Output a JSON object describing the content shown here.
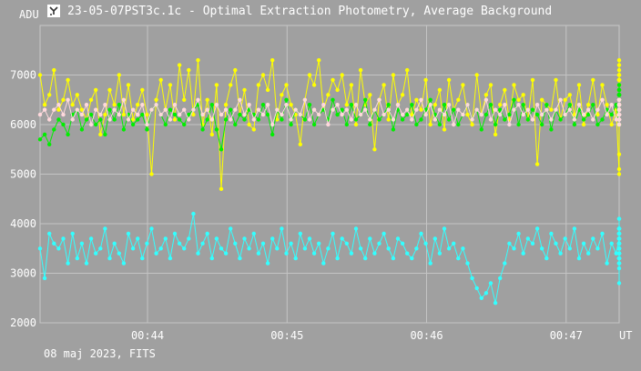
{
  "window": {
    "title": "23-05-07PST3c.1c - Optimal Extraction Photometry, Average Background",
    "icon": "app-icon"
  },
  "footer": {
    "date_text": "08 maj 2023, FITS"
  },
  "colors": {
    "background": "#a0a0a0",
    "grid": "#c4c4c4",
    "text": "#ffffff",
    "yellow": "#ffff00",
    "green": "#00ee00",
    "pink": "#ffd8dc",
    "cyan": "#33ffff"
  },
  "chart_data": {
    "type": "line",
    "xlabel": "UT",
    "ylabel": "ADU",
    "x_ticks": [
      "00:44",
      "00:45",
      "00:46",
      "00:47"
    ],
    "y_ticks": [
      2000,
      3000,
      4000,
      5000,
      6000,
      7000
    ],
    "xlim_minutes": [
      43.23,
      47.38
    ],
    "ylim": [
      2000,
      8000
    ],
    "grid": true,
    "x_start_minute": 43.23,
    "x_step_minutes": 0.0333,
    "series": [
      {
        "color": "yellow",
        "values": [
          7000,
          6400,
          6600,
          7100,
          6300,
          6500,
          6900,
          6400,
          6600,
          6300,
          6100,
          6500,
          6700,
          5800,
          6200,
          6700,
          6400,
          7000,
          6200,
          6800,
          6100,
          6400,
          6700,
          6200,
          5000,
          6500,
          6900,
          6300,
          6800,
          6100,
          7200,
          6500,
          7100,
          6200,
          7300,
          6000,
          6500,
          5800,
          6800,
          4700,
          6400,
          6800,
          7100,
          6200,
          6700,
          6000,
          5900,
          6800,
          7000,
          6700,
          7300,
          6100,
          6600,
          6800,
          6400,
          6200,
          5600,
          6500,
          7000,
          6800,
          7300,
          6300,
          6600,
          6900,
          6700,
          7000,
          6400,
          6800,
          6000,
          7100,
          6400,
          6600,
          5500,
          6500,
          6800,
          6100,
          7000,
          6400,
          6600,
          7100,
          6200,
          6500,
          6300,
          6900,
          6000,
          6400,
          6700,
          5900,
          6900,
          6300,
          6500,
          6800,
          6200,
          6000,
          7000,
          6200,
          6600,
          6800,
          5800,
          6400,
          6700,
          6100,
          6800,
          6500,
          6600,
          6100,
          6900,
          5200,
          6500,
          6400,
          6300,
          6900,
          6100,
          6500,
          6600,
          6200,
          6800,
          6000,
          6400,
          6900,
          6200,
          6800,
          6400,
          6000,
          6300,
          5000,
          6500,
          6700,
          6200,
          6900,
          6000,
          6600,
          6800,
          6400,
          6900,
          6200,
          6400,
          6800,
          6100,
          6900,
          6300,
          6400,
          6700,
          6000,
          6500,
          7000,
          6300,
          6800,
          6100,
          6500,
          6400,
          6000,
          6500,
          6600,
          6900,
          6300,
          6400,
          5100,
          6500,
          6800,
          6300,
          5400,
          6600,
          6200,
          6800,
          6500,
          6300,
          6900,
          6400,
          7000,
          6300,
          6600,
          6500,
          7200,
          6500,
          6700,
          6400,
          6800,
          6600,
          7000,
          6500,
          6200,
          6800,
          6500,
          7100,
          6400,
          6600,
          7300,
          6500,
          6900,
          6400,
          6700,
          6200,
          6500,
          6900,
          6100,
          6600,
          6400,
          6800,
          6300,
          6500,
          6200,
          6700,
          6300,
          6600,
          6900,
          6000,
          6500,
          6700,
          6200,
          6400,
          6600,
          6100,
          6800,
          6400,
          6700,
          6300,
          6500,
          6000,
          6900,
          6400,
          7000,
          6500,
          6800,
          6300,
          6700,
          6200,
          6500,
          6800,
          6100,
          6600,
          6200
        ]
      },
      {
        "color": "green",
        "values": [
          5700,
          5800,
          5600,
          5900,
          6100,
          6000,
          5800,
          6200,
          6300,
          5900,
          6100,
          6200,
          6000,
          6100,
          5800,
          6300,
          6100,
          6400,
          5900,
          6200,
          6000,
          6100,
          6200,
          5900,
          6300,
          6400,
          6200,
          6000,
          6300,
          6200,
          6100,
          6000,
          6200,
          6300,
          6400,
          5900,
          6100,
          6400,
          5900,
          5500,
          6100,
          6300,
          6000,
          6200,
          6100,
          6300,
          6200,
          6100,
          6400,
          6200,
          5800,
          6300,
          6100,
          6500,
          6000,
          6300,
          6200,
          6100,
          6400,
          6000,
          6200,
          6300,
          6100,
          6500,
          6200,
          6300,
          6000,
          6400,
          6100,
          6200,
          6500,
          6000,
          6300,
          6100,
          6200,
          6400,
          5900,
          6300,
          6100,
          6200,
          6400,
          6000,
          6100,
          6300,
          6500,
          6200,
          6000,
          6400,
          6100,
          6300,
          6000,
          6200,
          6400,
          6100,
          6300,
          5900,
          6200,
          6400,
          6000,
          6300,
          6100,
          6200,
          6500,
          6000,
          6400,
          6100,
          6300,
          6200,
          6000,
          6400,
          5900,
          6300,
          6100,
          6200,
          6400,
          6000,
          6300,
          6100,
          6200,
          6400,
          6000,
          6100,
          6300,
          6200,
          6400,
          6000,
          6100,
          6300,
          6200,
          6500,
          6000,
          6100,
          6300,
          6200,
          6400,
          6100,
          6000,
          6300,
          6200,
          6400,
          6000,
          6100,
          6300,
          6200,
          6500,
          6300,
          6000,
          6400,
          6200,
          6300,
          6100,
          6000,
          6400,
          6300,
          6200,
          6500,
          6100,
          6300,
          6200,
          6400,
          6000,
          6300,
          6500,
          6200,
          6300,
          6100,
          6400,
          6600,
          6200,
          6300,
          6000,
          6500,
          6300,
          6400,
          6200,
          6600,
          6300,
          6100,
          6400,
          6500,
          6300,
          6200,
          6700,
          6400,
          6300,
          6500,
          6800,
          6600,
          6400,
          6300,
          6600,
          6500,
          6700,
          6300,
          6400,
          6200,
          6500,
          6600,
          6300,
          6700,
          6800,
          6600,
          6500,
          6400,
          6700,
          6600,
          6500,
          6600,
          6400,
          6500,
          6600,
          6500,
          6400,
          6500,
          6600,
          6400,
          6500,
          6600,
          6400,
          6500,
          6300,
          6600,
          6500,
          6400,
          6600,
          6400,
          6500,
          6600,
          6500,
          6400,
          6500,
          6600,
          6300,
          6500,
          6400,
          6600
        ]
      },
      {
        "color": "pink",
        "values": [
          6200,
          6300,
          6100,
          6300,
          6400,
          6200,
          6500,
          6100,
          6300,
          6200,
          6400,
          6000,
          6300,
          6200,
          6400,
          6100,
          6300,
          6200,
          6500,
          6100,
          6300,
          6200,
          6400,
          6000,
          6300,
          6400,
          6200,
          6300,
          6100,
          6400,
          6200,
          6300,
          6100,
          6300,
          6500,
          6200,
          6300,
          6100,
          6400,
          6200,
          6300,
          6100,
          6300,
          6500,
          6200,
          6400,
          6100,
          6300,
          6200,
          6400,
          6000,
          6300,
          6200,
          6400,
          6100,
          6300,
          6200,
          6500,
          6100,
          6300,
          6200,
          6400,
          6000,
          6300,
          6400,
          6200,
          6300,
          6100,
          6400,
          6200,
          6300,
          6100,
          6300,
          6500,
          6200,
          6300,
          6100,
          6400,
          6200,
          6300,
          6100,
          6300,
          6500,
          6200,
          6400,
          6100,
          6300,
          6200,
          6400,
          6000,
          6300,
          6200,
          6400,
          6100,
          6300,
          6200,
          6500,
          6100,
          6300,
          6200,
          6400,
          6000,
          6300,
          6400,
          6200,
          6300,
          6100,
          6400,
          6200,
          6300,
          6100,
          6300,
          6500,
          6200,
          6300,
          6100,
          6400,
          6200,
          6300,
          6100,
          6300,
          6500,
          6200,
          6400,
          6100,
          6300,
          6200,
          6400,
          6000,
          6300,
          6200,
          6400,
          6100,
          6300,
          6200,
          6500,
          6100,
          6300,
          6200,
          6400,
          6000,
          6300,
          6400,
          6200,
          6300,
          6100,
          6400,
          6200,
          6300,
          6100,
          6300,
          6500,
          6200,
          6300,
          6100,
          6400,
          6200,
          6300,
          6100,
          6300,
          6500,
          6200,
          6400,
          6100,
          6300,
          6200,
          6400,
          6000,
          6300,
          6200,
          6400,
          6100,
          6300,
          6200,
          6500,
          6100,
          6300,
          6200,
          6400,
          6000,
          6300,
          6400,
          6200,
          6300,
          6100,
          6400,
          6200,
          6300,
          6100,
          6300,
          6500,
          6200,
          6300,
          6100,
          6400,
          6200,
          6300,
          6100,
          6300,
          6500,
          6200,
          6400,
          6100,
          6300,
          6200,
          6400,
          6000,
          6300,
          6200,
          6400,
          6100,
          6300,
          6200,
          6500,
          6100,
          6300,
          6200,
          6400,
          6000,
          6300,
          6400,
          6200,
          6300,
          6100,
          6400,
          6200,
          6300,
          6100,
          6300,
          6500,
          6200,
          6300,
          6100,
          6400,
          6200,
          6300
        ]
      },
      {
        "color": "cyan",
        "values": [
          3500,
          2900,
          3800,
          3600,
          3500,
          3700,
          3200,
          3800,
          3300,
          3600,
          3200,
          3700,
          3400,
          3500,
          3900,
          3300,
          3600,
          3400,
          3200,
          3800,
          3500,
          3700,
          3300,
          3600,
          3900,
          3400,
          3500,
          3700,
          3300,
          3800,
          3600,
          3500,
          3700,
          4200,
          3400,
          3600,
          3800,
          3300,
          3700,
          3500,
          3400,
          3900,
          3600,
          3300,
          3700,
          3500,
          3800,
          3400,
          3600,
          3200,
          3700,
          3500,
          3900,
          3400,
          3600,
          3300,
          3800,
          3500,
          3700,
          3400,
          3600,
          3200,
          3500,
          3800,
          3300,
          3700,
          3600,
          3400,
          3900,
          3500,
          3300,
          3700,
          3400,
          3600,
          3800,
          3500,
          3300,
          3700,
          3600,
          3400,
          3300,
          3500,
          3800,
          3600,
          3200,
          3700,
          3400,
          3900,
          3500,
          3600,
          3300,
          3500,
          3200,
          2900,
          2700,
          2500,
          2600,
          2800,
          2400,
          2900,
          3200,
          3600,
          3500,
          3800,
          3400,
          3700,
          3600,
          3900,
          3500,
          3300,
          3800,
          3600,
          3400,
          3700,
          3500,
          3900,
          3300,
          3600,
          3400,
          3700,
          3500,
          3800,
          3200,
          3600,
          3400,
          3700,
          2800,
          3500,
          3900,
          3300,
          3600,
          3400,
          3200,
          3700,
          3500,
          3800,
          3300,
          3600,
          3400,
          3700,
          3900,
          3200,
          3600,
          3800,
          3400,
          3500,
          3700,
          3300,
          3600,
          3400,
          3900,
          3500,
          3600,
          3300,
          3800,
          3400,
          3600,
          3700,
          3900,
          3500,
          3300,
          3700,
          3600,
          3400,
          3800,
          3500,
          3200,
          3600,
          3400,
          3700,
          3500,
          3300,
          3800,
          3600,
          3400,
          3700,
          3500,
          3200,
          3600,
          3900,
          3400,
          3700,
          3500,
          3800,
          3300,
          3600,
          3400,
          3700,
          3500,
          3900,
          3300,
          3600,
          3800,
          3400,
          3700,
          4100,
          3500,
          3800,
          3600,
          3400,
          3900,
          3700,
          3500,
          3800,
          3400,
          3600,
          3300,
          3700,
          3500,
          3900,
          3200,
          3600,
          3800,
          3400,
          3700,
          3500,
          3900,
          3600,
          3300,
          3700,
          3500,
          3800,
          3400,
          3600,
          3900,
          3500,
          3700,
          3300,
          3600,
          3400,
          3800,
          3500,
          4100,
          3700,
          3500,
          3600,
          3400,
          3100
        ]
      }
    ]
  }
}
